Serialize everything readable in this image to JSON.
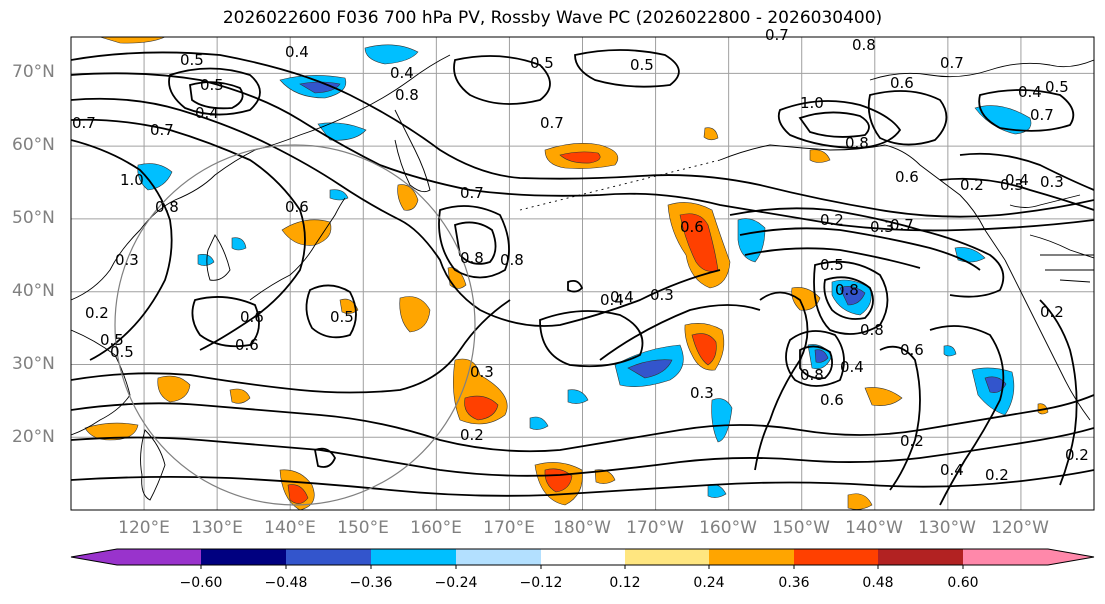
{
  "title": "2026022600 F036 700 hPa PV, Rossby Wave PC (2026022800 - 2026030400)",
  "lat_labels": [
    "70°N",
    "60°N",
    "50°N",
    "40°N",
    "30°N",
    "20°N"
  ],
  "lon_labels": [
    "120°E",
    "130°E",
    "140°E",
    "150°E",
    "160°E",
    "170°E",
    "180°W",
    "170°W",
    "160°W",
    "150°W",
    "140°W",
    "130°W",
    "120°W"
  ],
  "map_extent": {
    "lon_min": 110,
    "lon_max": 250,
    "lat_min": 10,
    "lat_max": 75
  },
  "colorbar": {
    "ticks": [
      "−0.60",
      "−0.48",
      "−0.36",
      "−0.24",
      "−0.12",
      "0.12",
      "0.24",
      "0.36",
      "0.48",
      "0.60"
    ],
    "colors": [
      "#9933cc",
      "#000080",
      "#3355cc",
      "#00bfff",
      "#b3e0ff",
      "#ffffff",
      "#ffe680",
      "#ffa500",
      "#ff4000",
      "#b22222",
      "#ff88aa"
    ]
  },
  "contour_labels": [
    "0.8",
    "0.6",
    "0.4",
    "0.5",
    "0.4",
    "0.7",
    "0.8",
    "0.7",
    "0.5",
    "0.7",
    "0.5",
    "0.4",
    "0.5",
    "0.4",
    "0.7",
    "0.7",
    "1.0",
    "0.8",
    "0.6",
    "0.7",
    "0.8",
    "0.8",
    "1.0",
    "0.8",
    "0.3",
    "0.2",
    "0.6",
    "0.5",
    "0.7",
    "0.8",
    "0.4",
    "0.3",
    "0.6",
    "0.5",
    "0.6",
    "0.2",
    "0.3",
    "0.2",
    "0.5",
    "0.8",
    "0.6",
    "0.8",
    "0.4",
    "0.6",
    "0.3",
    "0.2",
    "0.3",
    "0.2",
    "0.4",
    "0.2",
    "0.2",
    "0.7",
    "0.3",
    "0.4",
    "0.5",
    "0.6",
    "0.2",
    "0.3",
    "0.4",
    "0.5"
  ]
}
